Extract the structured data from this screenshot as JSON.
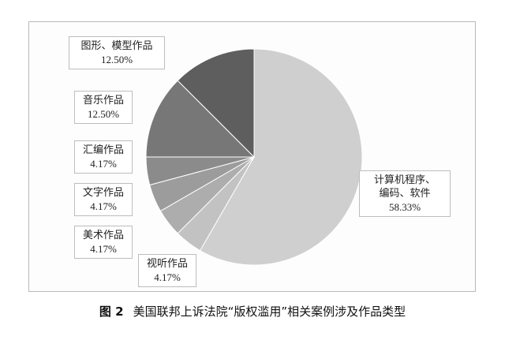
{
  "chart_data": {
    "type": "pie",
    "slices": [
      {
        "label": "计算机程序、编码、软件",
        "label_lines": [
          "计算机程序、",
          "编码、软件"
        ],
        "value": 58.33,
        "pct_text": "58.33%",
        "color": "#cfcfcf"
      },
      {
        "label": "视听作品",
        "label_lines": [
          "视听作品"
        ],
        "value": 4.17,
        "pct_text": "4.17%",
        "color": "#c2c2c2"
      },
      {
        "label": "美术作品",
        "label_lines": [
          "美术作品"
        ],
        "value": 4.17,
        "pct_text": "4.17%",
        "color": "#adadad"
      },
      {
        "label": "文字作品",
        "label_lines": [
          "文字作品"
        ],
        "value": 4.17,
        "pct_text": "4.17%",
        "color": "#9c9c9c"
      },
      {
        "label": "汇编作品",
        "label_lines": [
          "汇编作品"
        ],
        "value": 4.17,
        "pct_text": "4.17%",
        "color": "#8b8b8b"
      },
      {
        "label": "音乐作品",
        "label_lines": [
          "音乐作品"
        ],
        "value": 12.5,
        "pct_text": "12.50%",
        "color": "#777777"
      },
      {
        "label": "图形、模型作品",
        "label_lines": [
          "图形、模型作品"
        ],
        "value": 12.5,
        "pct_text": "12.50%",
        "color": "#5e5e5e"
      }
    ],
    "start_angle_deg": 0,
    "direction": "clockwise"
  },
  "caption": {
    "figure_number": "图 2",
    "text": "美国联邦上诉法院“版权滥用”相关案例涉及作品类型"
  }
}
